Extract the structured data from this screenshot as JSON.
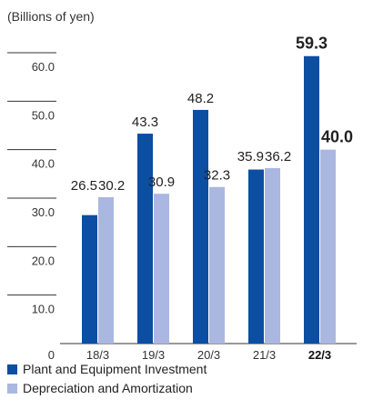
{
  "chart_data": {
    "type": "bar",
    "unit_label": "(Billions of yen)",
    "categories": [
      "18/3",
      "19/3",
      "20/3",
      "21/3",
      "22/3"
    ],
    "highlight_category": "22/3",
    "y_ticks": [
      "0",
      "10.0",
      "20.0",
      "30.0",
      "40.0",
      "50.0",
      "60.0"
    ],
    "ylim": [
      0,
      60
    ],
    "series": [
      {
        "name": "Plant and Equipment Investment",
        "color": "#0b4ea2",
        "values": [
          26.5,
          43.3,
          48.2,
          35.9,
          59.3
        ],
        "labels": [
          "26.5",
          "43.3",
          "48.2",
          "35.9",
          "59.3"
        ]
      },
      {
        "name": "Depreciation and Amortization",
        "color": "#aab7e0",
        "values": [
          30.2,
          30.9,
          32.3,
          36.2,
          40.0
        ],
        "labels": [
          "30.2",
          "30.9",
          "32.3",
          "36.2",
          "40.0"
        ]
      }
    ],
    "legend_position": "bottom-left",
    "grid": false
  }
}
